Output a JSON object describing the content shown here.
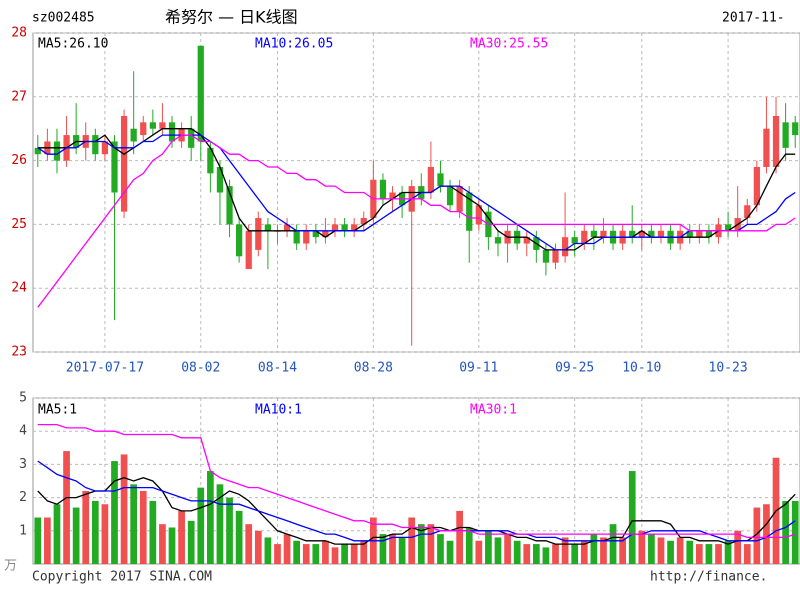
{
  "header": {
    "code": "sz002485",
    "title": "希努尔 — 日K线图",
    "date": "2017-11-"
  },
  "footer": {
    "copyright": "Copyright 2017 SINA.COM",
    "url": "http://finance."
  },
  "chart_data": [
    {
      "type": "candlestick",
      "categories": [
        null,
        null,
        null,
        null,
        null,
        null,
        null,
        "2017-07-17",
        null,
        null,
        null,
        null,
        null,
        null,
        null,
        null,
        null,
        "08-02",
        null,
        null,
        null,
        null,
        null,
        null,
        null,
        "08-14",
        null,
        null,
        null,
        null,
        null,
        null,
        null,
        null,
        null,
        "08-28",
        null,
        null,
        null,
        null,
        null,
        null,
        null,
        null,
        null,
        null,
        "09-11",
        null,
        null,
        null,
        null,
        null,
        null,
        null,
        null,
        null,
        "09-25",
        null,
        null,
        null,
        null,
        null,
        null,
        "10-10",
        null,
        null,
        null,
        null,
        null,
        null,
        null,
        null,
        "10-23",
        null,
        null,
        null,
        null,
        null,
        null,
        null
      ],
      "open": [
        26.2,
        26.1,
        26.3,
        26.0,
        26.4,
        26.2,
        26.4,
        26.1,
        26.3,
        25.2,
        26.5,
        26.4,
        26.6,
        26.5,
        26.6,
        26.3,
        26.5,
        27.8,
        26.2,
        25.9,
        25.6,
        25.0,
        24.3,
        24.6,
        25.0,
        24.9,
        24.9,
        24.9,
        24.7,
        24.9,
        24.8,
        24.9,
        25.0,
        24.9,
        25.0,
        25.1,
        25.7,
        25.4,
        25.5,
        25.2,
        25.6,
        25.5,
        25.8,
        25.6,
        25.2,
        25.5,
        25.0,
        25.2,
        24.8,
        24.7,
        24.9,
        24.7,
        24.8,
        24.6,
        24.4,
        24.5,
        24.8,
        24.7,
        24.9,
        24.8,
        24.9,
        24.7,
        24.9,
        24.8,
        24.9,
        24.8,
        24.9,
        24.7,
        24.9,
        24.8,
        24.9,
        24.8,
        25.0,
        24.9,
        25.1,
        25.3,
        25.9,
        25.9,
        26.6,
        26.6
      ],
      "high": [
        26.4,
        26.5,
        26.5,
        26.7,
        26.9,
        26.6,
        26.5,
        26.4,
        26.4,
        26.8,
        27.4,
        26.7,
        26.8,
        26.9,
        26.7,
        26.6,
        26.7,
        27.8,
        26.3,
        26.0,
        25.7,
        25.1,
        25.0,
        25.2,
        25.1,
        25.0,
        25.1,
        25.0,
        25.0,
        25.0,
        25.1,
        25.1,
        25.1,
        25.1,
        25.2,
        26.0,
        25.8,
        25.6,
        25.6,
        25.7,
        25.8,
        26.3,
        26.0,
        25.7,
        25.7,
        25.6,
        25.4,
        25.3,
        24.9,
        25.0,
        25.0,
        24.9,
        24.9,
        24.7,
        24.7,
        25.5,
        24.9,
        25.0,
        25.0,
        25.1,
        25.0,
        25.0,
        25.3,
        25.0,
        25.0,
        25.0,
        25.0,
        25.0,
        25.0,
        25.0,
        25.0,
        25.1,
        25.2,
        25.6,
        25.4,
        26.0,
        27.0,
        27.0,
        26.9,
        26.7
      ],
      "low": [
        25.9,
        26.0,
        25.8,
        25.9,
        26.1,
        26.0,
        26.0,
        26.0,
        23.5,
        25.1,
        26.1,
        26.3,
        26.4,
        26.4,
        26.2,
        26.2,
        26.0,
        26.0,
        25.5,
        25.0,
        24.8,
        24.4,
        24.3,
        24.5,
        24.3,
        24.7,
        24.8,
        24.6,
        24.6,
        24.7,
        24.7,
        24.8,
        24.8,
        24.8,
        24.9,
        25.0,
        25.3,
        25.2,
        25.1,
        23.1,
        25.3,
        25.4,
        25.5,
        25.2,
        25.1,
        24.4,
        24.9,
        24.6,
        24.5,
        24.4,
        24.6,
        24.5,
        24.4,
        24.2,
        24.3,
        24.4,
        24.5,
        24.6,
        24.6,
        24.7,
        24.6,
        24.6,
        24.7,
        24.6,
        24.7,
        24.7,
        24.6,
        24.6,
        24.7,
        24.7,
        24.7,
        24.7,
        24.8,
        24.8,
        25.0,
        25.2,
        25.8,
        25.8,
        26.0,
        26.2
      ],
      "close": [
        26.1,
        26.3,
        26.0,
        26.4,
        26.2,
        26.4,
        26.1,
        26.3,
        25.5,
        26.7,
        26.3,
        26.6,
        26.5,
        26.6,
        26.3,
        26.5,
        26.2,
        26.3,
        25.8,
        25.5,
        25.0,
        24.5,
        24.9,
        25.1,
        24.9,
        24.9,
        25.0,
        24.7,
        24.9,
        24.8,
        24.9,
        25.0,
        24.9,
        25.0,
        25.1,
        25.7,
        25.4,
        25.5,
        25.3,
        25.6,
        25.4,
        25.9,
        25.6,
        25.3,
        25.6,
        24.9,
        25.3,
        24.8,
        24.7,
        24.9,
        24.7,
        24.8,
        24.6,
        24.4,
        24.6,
        24.8,
        24.7,
        24.9,
        24.8,
        24.9,
        24.7,
        24.9,
        24.8,
        24.9,
        24.8,
        24.9,
        24.7,
        24.9,
        24.8,
        24.9,
        24.8,
        25.0,
        24.9,
        25.1,
        25.3,
        25.9,
        26.5,
        26.7,
        26.2,
        26.4
      ],
      "up_color": "#f05050",
      "down_color": "#22aa22",
      "series": [
        {
          "name": "MA5:26.10",
          "color": "#000000",
          "values": [
            26.2,
            26.2,
            26.2,
            26.2,
            26.3,
            26.3,
            26.3,
            26.4,
            26.2,
            26.1,
            26.2,
            26.3,
            26.4,
            26.5,
            26.5,
            26.5,
            26.5,
            26.4,
            26.2,
            25.9,
            25.5,
            25.1,
            24.9,
            24.9,
            24.9,
            24.9,
            24.9,
            24.9,
            24.9,
            24.9,
            24.8,
            24.9,
            24.9,
            24.9,
            25.0,
            25.1,
            25.3,
            25.4,
            25.5,
            25.5,
            25.5,
            25.5,
            25.6,
            25.6,
            25.5,
            25.4,
            25.3,
            25.1,
            24.9,
            24.8,
            24.8,
            24.8,
            24.7,
            24.6,
            24.6,
            24.6,
            24.6,
            24.7,
            24.8,
            24.8,
            24.8,
            24.8,
            24.8,
            24.9,
            24.8,
            24.8,
            24.8,
            24.8,
            24.8,
            24.8,
            24.8,
            24.9,
            24.9,
            25.0,
            25.1,
            25.3,
            25.6,
            25.9,
            26.1,
            26.1
          ]
        },
        {
          "name": "MA10:26.05",
          "color": "#0000ff",
          "values": [
            26.2,
            26.1,
            26.1,
            26.2,
            26.2,
            26.3,
            26.3,
            26.3,
            26.2,
            26.2,
            26.2,
            26.3,
            26.3,
            26.4,
            26.4,
            26.4,
            26.4,
            26.4,
            26.3,
            26.2,
            26.0,
            25.8,
            25.6,
            25.4,
            25.2,
            25.1,
            25.0,
            24.9,
            24.9,
            24.9,
            24.9,
            24.9,
            24.9,
            24.9,
            24.9,
            25.0,
            25.1,
            25.2,
            25.3,
            25.4,
            25.5,
            25.5,
            25.6,
            25.6,
            25.6,
            25.5,
            25.4,
            25.3,
            25.2,
            25.1,
            25.0,
            24.9,
            24.8,
            24.7,
            24.6,
            24.6,
            24.7,
            24.7,
            24.7,
            24.8,
            24.8,
            24.8,
            24.8,
            24.8,
            24.8,
            24.8,
            24.8,
            24.8,
            24.9,
            24.9,
            24.9,
            24.9,
            24.9,
            24.9,
            25.0,
            25.0,
            25.1,
            25.2,
            25.4,
            25.5
          ]
        },
        {
          "name": "MA30:25.55",
          "color": "#ff00ff",
          "values": [
            23.7,
            23.9,
            24.1,
            24.3,
            24.5,
            24.7,
            24.9,
            25.1,
            25.3,
            25.5,
            25.7,
            25.8,
            26.0,
            26.1,
            26.3,
            26.4,
            26.4,
            26.3,
            26.3,
            26.2,
            26.1,
            26.1,
            26.0,
            26.0,
            25.9,
            25.9,
            25.8,
            25.8,
            25.7,
            25.7,
            25.6,
            25.6,
            25.5,
            25.5,
            25.5,
            25.4,
            25.4,
            25.4,
            25.4,
            25.4,
            25.4,
            25.3,
            25.3,
            25.2,
            25.2,
            25.1,
            25.1,
            25.0,
            25.0,
            25.0,
            25.0,
            25.0,
            25.0,
            25.0,
            25.0,
            25.0,
            25.0,
            25.0,
            25.0,
            25.0,
            25.0,
            25.0,
            25.0,
            25.0,
            25.0,
            25.0,
            25.0,
            25.0,
            24.9,
            24.9,
            24.9,
            24.9,
            24.9,
            24.9,
            24.9,
            24.9,
            24.9,
            25.0,
            25.0,
            25.1
          ]
        }
      ],
      "ylim": [
        23,
        28
      ],
      "yticks": [
        23,
        24,
        25,
        26,
        27,
        28
      ],
      "grid": true
    },
    {
      "type": "bar",
      "unit": "万",
      "values": [
        1.4,
        1.4,
        1.8,
        3.4,
        1.7,
        2.2,
        1.9,
        1.8,
        3.1,
        3.3,
        2.4,
        2.2,
        1.9,
        1.2,
        1.1,
        1.6,
        1.3,
        2.3,
        2.8,
        2.4,
        2.0,
        1.6,
        1.2,
        1.0,
        0.8,
        0.6,
        0.9,
        0.7,
        0.6,
        0.6,
        0.7,
        0.5,
        0.6,
        0.6,
        0.7,
        1.4,
        0.9,
        0.9,
        0.8,
        1.4,
        1.2,
        1.2,
        0.9,
        0.7,
        1.6,
        1.1,
        0.7,
        1.0,
        0.8,
        0.9,
        0.7,
        0.6,
        0.6,
        0.5,
        0.6,
        0.8,
        0.6,
        0.7,
        0.9,
        0.8,
        1.2,
        0.8,
        2.8,
        1.0,
        0.9,
        0.8,
        0.7,
        0.8,
        0.7,
        0.6,
        0.6,
        0.6,
        0.7,
        1.0,
        0.6,
        1.7,
        1.8,
        3.2,
        1.9,
        1.9
      ],
      "series": [
        {
          "name": "MA5:1",
          "color": "#000000",
          "values": [
            2.2,
            1.9,
            1.8,
            2.0,
            2.0,
            2.1,
            2.2,
            2.2,
            2.5,
            2.6,
            2.5,
            2.6,
            2.5,
            2.2,
            1.7,
            1.6,
            1.6,
            1.7,
            1.8,
            2.0,
            2.2,
            2.1,
            1.9,
            1.6,
            1.3,
            1.0,
            0.9,
            0.8,
            0.7,
            0.7,
            0.7,
            0.6,
            0.6,
            0.6,
            0.6,
            0.8,
            0.8,
            0.9,
            0.9,
            1.1,
            1.0,
            1.1,
            1.1,
            1.0,
            1.1,
            1.1,
            1.0,
            1.0,
            1.0,
            0.9,
            0.8,
            0.8,
            0.7,
            0.7,
            0.6,
            0.6,
            0.6,
            0.6,
            0.7,
            0.7,
            0.8,
            0.8,
            1.3,
            1.3,
            1.3,
            1.3,
            1.2,
            0.8,
            0.8,
            0.7,
            0.7,
            0.7,
            0.6,
            0.7,
            0.7,
            0.9,
            1.2,
            1.6,
            1.8,
            2.1
          ]
        },
        {
          "name": "MA10:1",
          "color": "#0000ff",
          "values": [
            3.1,
            2.9,
            2.7,
            2.6,
            2.5,
            2.3,
            2.2,
            2.2,
            2.2,
            2.3,
            2.3,
            2.3,
            2.3,
            2.2,
            2.1,
            2.0,
            1.9,
            1.9,
            1.9,
            1.8,
            1.8,
            1.8,
            1.7,
            1.6,
            1.5,
            1.4,
            1.3,
            1.2,
            1.1,
            1.0,
            0.9,
            0.9,
            0.8,
            0.7,
            0.7,
            0.7,
            0.7,
            0.8,
            0.8,
            0.8,
            0.9,
            0.9,
            1.0,
            1.0,
            1.0,
            1.0,
            1.0,
            1.0,
            1.0,
            1.0,
            0.9,
            0.9,
            0.8,
            0.8,
            0.8,
            0.7,
            0.7,
            0.7,
            0.7,
            0.7,
            0.7,
            0.7,
            0.9,
            0.9,
            1.0,
            1.0,
            1.0,
            1.0,
            1.0,
            1.0,
            0.9,
            0.8,
            0.7,
            0.7,
            0.7,
            0.7,
            0.8,
            1.0,
            1.1,
            1.3
          ]
        },
        {
          "name": "MA30:1",
          "color": "#ff00ff",
          "values": [
            4.2,
            4.2,
            4.2,
            4.1,
            4.1,
            4.1,
            4.0,
            4.0,
            4.0,
            3.9,
            3.9,
            3.9,
            3.9,
            3.9,
            3.9,
            3.8,
            3.8,
            3.8,
            2.8,
            2.6,
            2.5,
            2.4,
            2.3,
            2.3,
            2.2,
            2.1,
            2.0,
            1.9,
            1.8,
            1.7,
            1.6,
            1.5,
            1.4,
            1.3,
            1.3,
            1.2,
            1.2,
            1.2,
            1.1,
            1.1,
            1.1,
            1.1,
            1.0,
            1.0,
            1.0,
            1.0,
            0.9,
            0.9,
            0.9,
            0.9,
            0.9,
            0.9,
            0.9,
            0.9,
            0.9,
            0.9,
            0.9,
            0.9,
            0.9,
            0.9,
            0.9,
            0.9,
            0.9,
            0.9,
            0.9,
            0.9,
            0.9,
            0.9,
            0.9,
            0.9,
            0.9,
            0.9,
            0.9,
            0.9,
            0.8,
            0.8,
            0.8,
            0.8,
            0.8,
            0.9
          ]
        }
      ],
      "ylim": [
        0,
        5
      ],
      "yticks": [
        1,
        2,
        3,
        4,
        5
      ],
      "grid": true
    }
  ]
}
